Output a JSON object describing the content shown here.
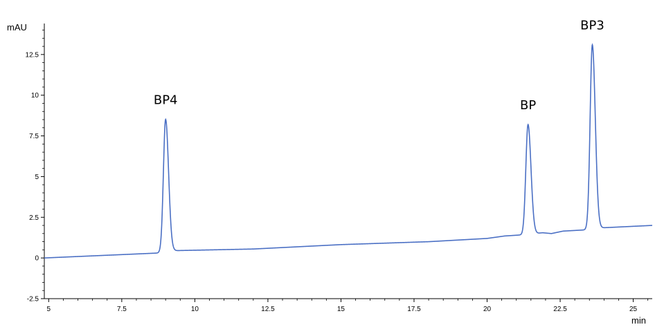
{
  "chart_data": {
    "type": "line",
    "ylabel": "mAU",
    "xlabel": "min",
    "xlim": [
      4.85,
      25.65
    ],
    "ylim": [
      -2.5,
      14.15
    ],
    "x_ticks": [
      5,
      7.5,
      10,
      12.5,
      15,
      17.5,
      20,
      22.5,
      25
    ],
    "x_tick_labels": [
      "5",
      "7.5",
      "10",
      "12.5",
      "15",
      "17.5",
      "20",
      "22.5",
      "25"
    ],
    "y_ticks": [
      -2.5,
      0,
      2.5,
      5,
      7.5,
      10,
      12.5
    ],
    "y_tick_labels": [
      "-2.5",
      "0",
      "2.5",
      "5",
      "7.5",
      "10",
      "12.5"
    ],
    "grid": false,
    "line_color": "#4a6fc4",
    "baseline": [
      [
        4.85,
        0.0
      ],
      [
        8.7,
        0.3
      ],
      [
        9.3,
        0.45
      ],
      [
        12.0,
        0.55
      ],
      [
        15.0,
        0.82
      ],
      [
        18.0,
        1.0
      ],
      [
        20.0,
        1.2
      ],
      [
        20.6,
        1.35
      ],
      [
        21.2,
        1.42
      ],
      [
        21.9,
        1.55
      ],
      [
        22.2,
        1.5
      ],
      [
        22.6,
        1.65
      ],
      [
        23.3,
        1.72
      ],
      [
        23.9,
        1.85
      ],
      [
        25.65,
        2.0
      ]
    ],
    "peaks": [
      {
        "label": "BP4",
        "x": 9.0,
        "height": 8.52
      },
      {
        "label": "BP",
        "x": 21.4,
        "height": 8.2
      },
      {
        "label": "BP3",
        "x": 23.6,
        "height": 13.1
      }
    ]
  }
}
